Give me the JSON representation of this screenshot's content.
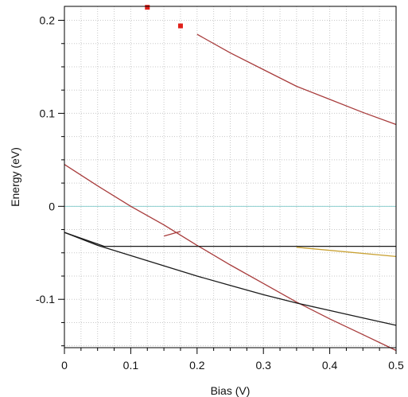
{
  "chart_data": {
    "type": "line",
    "title": "",
    "xlabel": "Bias (V)",
    "ylabel": "Energy (eV)",
    "xlim": [
      0,
      0.5
    ],
    "ylim": [
      -0.152,
      0.215
    ],
    "xticks": [
      0,
      0.1,
      0.2,
      0.3,
      0.4,
      0.5
    ],
    "xtick_labels": [
      "0",
      "0.1",
      "0.2",
      "0.3",
      "0.4",
      "0.5"
    ],
    "yticks": [
      -0.1,
      0,
      0.1,
      0.2
    ],
    "ytick_labels": [
      "-0.1",
      "0",
      "0.1",
      "0.2"
    ],
    "grid": true,
    "legend": "none",
    "series": [
      {
        "color": "#a83c3c",
        "x": [
          0.2,
          0.25,
          0.3,
          0.35,
          0.4,
          0.45,
          0.5
        ],
        "y": [
          0.185,
          0.165,
          0.147,
          0.129,
          0.115,
          0.101,
          0.088
        ]
      },
      {
        "color": "#a83c3c",
        "x": [
          0,
          0.05,
          0.1,
          0.15,
          0.2,
          0.25,
          0.3,
          0.35,
          0.4,
          0.45,
          0.5
        ],
        "y": [
          0.045,
          0.022,
          0.0,
          -0.02,
          -0.042,
          -0.063,
          -0.083,
          -0.103,
          -0.121,
          -0.138,
          -0.155
        ]
      },
      {
        "color": "#a83c3c",
        "x": [
          0.15,
          0.175
        ],
        "y": [
          -0.032,
          -0.027
        ]
      },
      {
        "color": "#1a1a1a",
        "x": [
          0,
          0.05,
          0.1,
          0.15,
          0.2,
          0.25,
          0.3,
          0.35,
          0.4,
          0.45,
          0.5
        ],
        "y": [
          -0.028,
          -0.042,
          -0.053,
          -0.064,
          -0.075,
          -0.085,
          -0.095,
          -0.104,
          -0.112,
          -0.12,
          -0.128
        ]
      },
      {
        "color": "#1a1a1a",
        "x": [
          0,
          0.06,
          0.5
        ],
        "y": [
          -0.028,
          -0.043,
          -0.043
        ]
      },
      {
        "color": "#c8a030",
        "x": [
          0.35,
          0.5
        ],
        "y": [
          -0.044,
          -0.054
        ]
      }
    ],
    "points": [
      {
        "x": 0.125,
        "y": 0.214,
        "color": "#e0201a"
      },
      {
        "x": 0.175,
        "y": 0.194,
        "color": "#e0201a"
      }
    ],
    "reference_line": {
      "y": 0,
      "color": "#8ccfcf"
    }
  }
}
